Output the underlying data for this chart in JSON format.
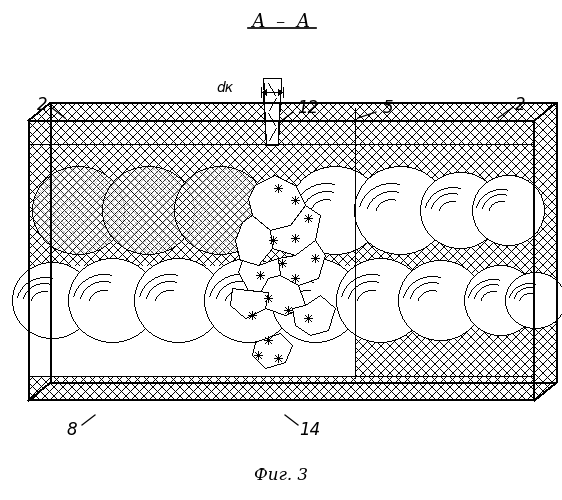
{
  "bg_color": "#ffffff",
  "fig_width": 562,
  "fig_height": 500,
  "title": "Фиг. 3",
  "section": "А – А",
  "labels": [
    "2",
    "2",
    "5",
    "8",
    "12",
    "14"
  ],
  "label_dk": "dк"
}
